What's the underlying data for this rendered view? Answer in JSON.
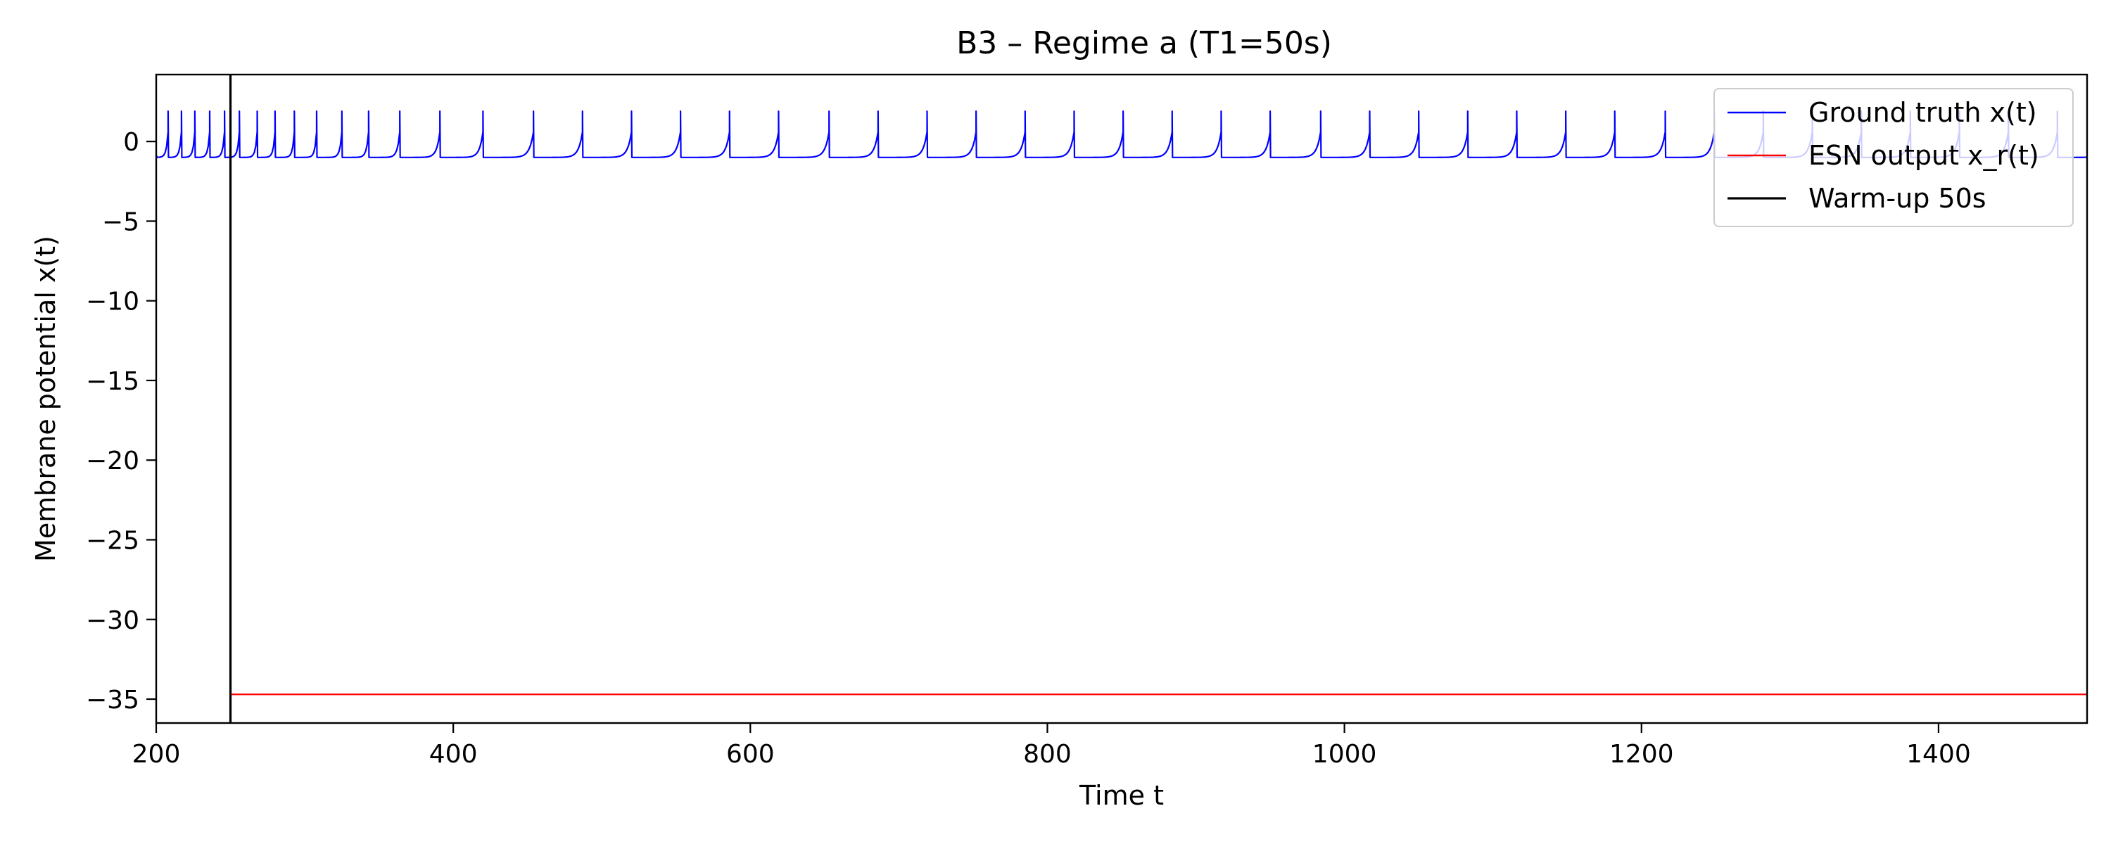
{
  "chart_data": {
    "type": "line",
    "title": "B3 – Regime a (T1=50s)",
    "xlabel": "Time t",
    "ylabel": "Membrane potential x(t)",
    "xlim": [
      200,
      1500
    ],
    "ylim": [
      -36.5,
      4.2
    ],
    "xticks": [
      200,
      400,
      600,
      800,
      1000,
      1200,
      1400
    ],
    "yticks": [
      0,
      -5,
      -10,
      -15,
      -20,
      -25,
      -30,
      -35
    ],
    "grid": false,
    "legend_position": "top-right",
    "series": [
      {
        "name": "Ground truth x(t)",
        "color": "#0000ff",
        "kind": "spike-train",
        "baseline": -1.0,
        "peak": 1.9,
        "spike_times": [
          208,
          217,
          226,
          236,
          246,
          256,
          268,
          280,
          293,
          308,
          325,
          343,
          364,
          391,
          420,
          454,
          487,
          520,
          553,
          586,
          619,
          653,
          686,
          719,
          752,
          785,
          818,
          851,
          884,
          917,
          950,
          984,
          1017,
          1050,
          1083,
          1116,
          1149,
          1182,
          1216,
          1249,
          1282,
          1315,
          1348,
          1381,
          1414,
          1447,
          1480
        ]
      },
      {
        "name": "ESN output x_r(t)",
        "color": "#ff0000",
        "kind": "constant",
        "x_start": 250,
        "x_end": 1500,
        "value": -34.7
      }
    ],
    "vlines": [
      {
        "name": "Warm-up 50s",
        "color": "#000000",
        "x": 250
      }
    ],
    "legend": [
      {
        "label": "Ground truth x(t)",
        "color": "#0000ff"
      },
      {
        "label": "ESN output x_r(t)",
        "color": "#ff0000"
      },
      {
        "label": "Warm-up 50s",
        "color": "#000000"
      }
    ]
  }
}
